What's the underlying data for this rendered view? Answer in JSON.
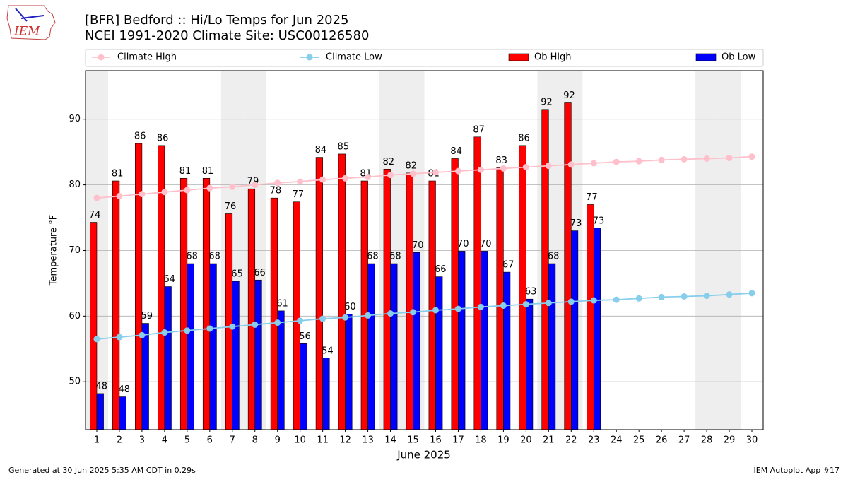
{
  "chart_data": {
    "type": "bar",
    "title": "[BFR] Bedford :: Hi/Lo Temps for Jun 2025",
    "subtitle": "NCEI 1991-2020 Climate Site: USC00126580",
    "xlabel": "June 2025",
    "ylabel": "Temperature °F",
    "logo_text": "IEM",
    "footer_left": "Generated at 30 Jun 2025 5:35 AM CDT in 0.29s",
    "footer_right": "IEM Autoplot App #17",
    "x": [
      1,
      2,
      3,
      4,
      5,
      6,
      7,
      8,
      9,
      10,
      11,
      12,
      13,
      14,
      15,
      16,
      17,
      18,
      19,
      20,
      21,
      22,
      23,
      24,
      25,
      26,
      27,
      28,
      29,
      30
    ],
    "xlim": [
      0.5,
      30.5
    ],
    "xticks": [
      1,
      2,
      3,
      4,
      5,
      6,
      7,
      8,
      9,
      10,
      11,
      12,
      13,
      14,
      15,
      16,
      17,
      18,
      19,
      20,
      21,
      22,
      23,
      24,
      25,
      26,
      27,
      28,
      29,
      30
    ],
    "ylim": [
      42.7,
      97.4
    ],
    "yticks": [
      50,
      60,
      70,
      80,
      90
    ],
    "grid": true,
    "highlight_x": [
      1,
      7,
      8,
      14,
      15,
      21,
      22,
      28,
      29
    ],
    "highlight_color": "#eeeeee",
    "legend": "top",
    "series": [
      {
        "name": "Climate High",
        "type": "line",
        "color": "pink",
        "values": [
          78.0,
          78.3,
          78.6,
          78.9,
          79.2,
          79.5,
          79.7,
          80.0,
          80.3,
          80.5,
          80.8,
          81.0,
          81.2,
          81.5,
          81.7,
          81.9,
          82.1,
          82.3,
          82.5,
          82.7,
          82.9,
          83.1,
          83.3,
          83.5,
          83.6,
          83.8,
          83.9,
          84.0,
          84.1,
          84.3
        ]
      },
      {
        "name": "Climate Low",
        "type": "line",
        "color": "skyblue",
        "values": [
          56.5,
          56.8,
          57.1,
          57.5,
          57.8,
          58.1,
          58.4,
          58.7,
          59.0,
          59.3,
          59.6,
          59.8,
          60.1,
          60.4,
          60.6,
          60.9,
          61.1,
          61.4,
          61.6,
          61.8,
          62.0,
          62.2,
          62.4,
          62.5,
          62.7,
          62.9,
          63.0,
          63.1,
          63.3,
          63.5
        ]
      },
      {
        "name": "Ob High",
        "type": "bar",
        "color": "red",
        "values": [
          74.3,
          80.6,
          86.3,
          86.0,
          81.0,
          81.0,
          75.6,
          79.4,
          78.0,
          77.4,
          84.2,
          84.7,
          80.6,
          82.4,
          81.8,
          80.6,
          84.0,
          87.3,
          82.6,
          86.0,
          91.5,
          92.5,
          77.0,
          null,
          null,
          null,
          null,
          null,
          null,
          null
        ],
        "value_labels": [
          "74",
          "81",
          "86",
          "86",
          "81",
          "81",
          "76",
          "79",
          "78",
          "77",
          "84",
          "85",
          "81",
          "82",
          "82",
          "81",
          "84",
          "87",
          "83",
          "86",
          "92",
          "92",
          "77",
          null,
          null,
          null,
          null,
          null,
          null,
          null
        ]
      },
      {
        "name": "Ob Low",
        "type": "bar",
        "color": "blue",
        "values": [
          48.2,
          47.7,
          58.9,
          64.5,
          68.0,
          68.0,
          65.3,
          65.5,
          60.8,
          55.8,
          53.6,
          60.3,
          68.0,
          68.0,
          69.7,
          66.0,
          69.9,
          69.9,
          66.7,
          62.6,
          68.0,
          73.0,
          73.4,
          null,
          null,
          null,
          null,
          null,
          null,
          null
        ],
        "value_labels": [
          "48",
          "48",
          "59",
          "64",
          "68",
          "68",
          "65",
          "66",
          "61",
          "56",
          "54",
          "60",
          "68",
          "68",
          "70",
          "66",
          "70",
          "70",
          "67",
          "63",
          "68",
          "73",
          "73",
          null,
          null,
          null,
          null,
          null,
          null,
          null
        ]
      }
    ]
  }
}
